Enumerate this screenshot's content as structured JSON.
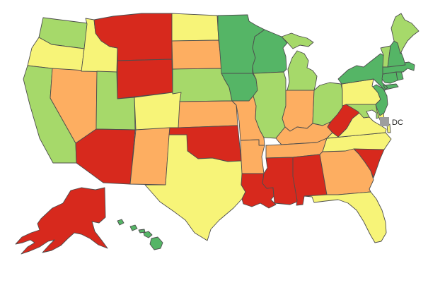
{
  "legend": {
    "dc_label": "DC",
    "dc_color": "#9e9e9e"
  },
  "palette": {
    "red": "#d7291d",
    "orange": "#fdae61",
    "yellow": "#f7f478",
    "light_green": "#a6d96a",
    "dark_green": "#55b566"
  },
  "map": {
    "stroke_color": "#4d4d4d",
    "background": "#ffffff",
    "states": [
      {
        "abbr": "WA",
        "name": "Washington",
        "bucket": "light_green"
      },
      {
        "abbr": "OR",
        "name": "Oregon",
        "bucket": "yellow"
      },
      {
        "abbr": "CA",
        "name": "California",
        "bucket": "light_green"
      },
      {
        "abbr": "NV",
        "name": "Nevada",
        "bucket": "orange"
      },
      {
        "abbr": "ID",
        "name": "Idaho",
        "bucket": "yellow"
      },
      {
        "abbr": "MT",
        "name": "Montana",
        "bucket": "red"
      },
      {
        "abbr": "WY",
        "name": "Wyoming",
        "bucket": "red"
      },
      {
        "abbr": "UT",
        "name": "Utah",
        "bucket": "light_green"
      },
      {
        "abbr": "CO",
        "name": "Colorado",
        "bucket": "yellow"
      },
      {
        "abbr": "AZ",
        "name": "Arizona",
        "bucket": "red"
      },
      {
        "abbr": "NM",
        "name": "New Mexico",
        "bucket": "orange"
      },
      {
        "abbr": "ND",
        "name": "North Dakota",
        "bucket": "yellow"
      },
      {
        "abbr": "SD",
        "name": "South Dakota",
        "bucket": "orange"
      },
      {
        "abbr": "NE",
        "name": "Nebraska",
        "bucket": "light_green"
      },
      {
        "abbr": "KS",
        "name": "Kansas",
        "bucket": "orange"
      },
      {
        "abbr": "OK",
        "name": "Oklahoma",
        "bucket": "red"
      },
      {
        "abbr": "TX",
        "name": "Texas",
        "bucket": "yellow"
      },
      {
        "abbr": "MN",
        "name": "Minnesota",
        "bucket": "dark_green"
      },
      {
        "abbr": "IA",
        "name": "Iowa",
        "bucket": "dark_green"
      },
      {
        "abbr": "MO",
        "name": "Missouri",
        "bucket": "orange"
      },
      {
        "abbr": "AR",
        "name": "Arkansas",
        "bucket": "orange"
      },
      {
        "abbr": "LA",
        "name": "Louisiana",
        "bucket": "red"
      },
      {
        "abbr": "WI",
        "name": "Wisconsin",
        "bucket": "dark_green"
      },
      {
        "abbr": "MI",
        "name": "Michigan",
        "bucket": "light_green"
      },
      {
        "abbr": "IL",
        "name": "Illinois",
        "bucket": "light_green"
      },
      {
        "abbr": "IN",
        "name": "Indiana",
        "bucket": "orange"
      },
      {
        "abbr": "OH",
        "name": "Ohio",
        "bucket": "light_green"
      },
      {
        "abbr": "KY",
        "name": "Kentucky",
        "bucket": "orange"
      },
      {
        "abbr": "TN",
        "name": "Tennessee",
        "bucket": "orange"
      },
      {
        "abbr": "MS",
        "name": "Mississippi",
        "bucket": "red"
      },
      {
        "abbr": "AL",
        "name": "Alabama",
        "bucket": "red"
      },
      {
        "abbr": "GA",
        "name": "Georgia",
        "bucket": "orange"
      },
      {
        "abbr": "FL",
        "name": "Florida",
        "bucket": "yellow"
      },
      {
        "abbr": "SC",
        "name": "South Carolina",
        "bucket": "red"
      },
      {
        "abbr": "NC",
        "name": "North Carolina",
        "bucket": "yellow"
      },
      {
        "abbr": "VA",
        "name": "Virginia",
        "bucket": "yellow"
      },
      {
        "abbr": "WV",
        "name": "West Virginia",
        "bucket": "red"
      },
      {
        "abbr": "MD",
        "name": "Maryland",
        "bucket": "light_green"
      },
      {
        "abbr": "DE",
        "name": "Delaware",
        "bucket": "yellow"
      },
      {
        "abbr": "PA",
        "name": "Pennsylvania",
        "bucket": "yellow"
      },
      {
        "abbr": "NJ",
        "name": "New Jersey",
        "bucket": "dark_green"
      },
      {
        "abbr": "NY",
        "name": "New York",
        "bucket": "dark_green"
      },
      {
        "abbr": "CT",
        "name": "Connecticut",
        "bucket": "dark_green"
      },
      {
        "abbr": "RI",
        "name": "Rhode Island",
        "bucket": "dark_green"
      },
      {
        "abbr": "MA",
        "name": "Massachusetts",
        "bucket": "dark_green"
      },
      {
        "abbr": "VT",
        "name": "Vermont",
        "bucket": "light_green"
      },
      {
        "abbr": "NH",
        "name": "New Hampshire",
        "bucket": "dark_green"
      },
      {
        "abbr": "ME",
        "name": "Maine",
        "bucket": "light_green"
      },
      {
        "abbr": "AK",
        "name": "Alaska",
        "bucket": "red"
      },
      {
        "abbr": "HI",
        "name": "Hawaii",
        "bucket": "dark_green"
      }
    ]
  },
  "chart_data": {
    "type": "choropleth",
    "region": "United States (states + DC)",
    "legend_entries": [
      "DC"
    ],
    "buckets": {
      "red": [
        "MT",
        "WY",
        "AZ",
        "OK",
        "LA",
        "MS",
        "AL",
        "SC",
        "WV",
        "AK"
      ],
      "orange": [
        "NV",
        "SD",
        "NM",
        "KS",
        "MO",
        "AR",
        "IN",
        "KY",
        "TN",
        "GA"
      ],
      "yellow": [
        "OR",
        "ID",
        "ND",
        "CO",
        "TX",
        "PA",
        "VA",
        "NC",
        "FL",
        "DE"
      ],
      "light_green": [
        "WA",
        "CA",
        "UT",
        "NE",
        "IL",
        "MI",
        "OH",
        "MD",
        "VT",
        "ME"
      ],
      "dark_green": [
        "MN",
        "WI",
        "IA",
        "NY",
        "NJ",
        "CT",
        "RI",
        "MA",
        "NH",
        "HI"
      ],
      "gray": [
        "DC"
      ]
    }
  }
}
